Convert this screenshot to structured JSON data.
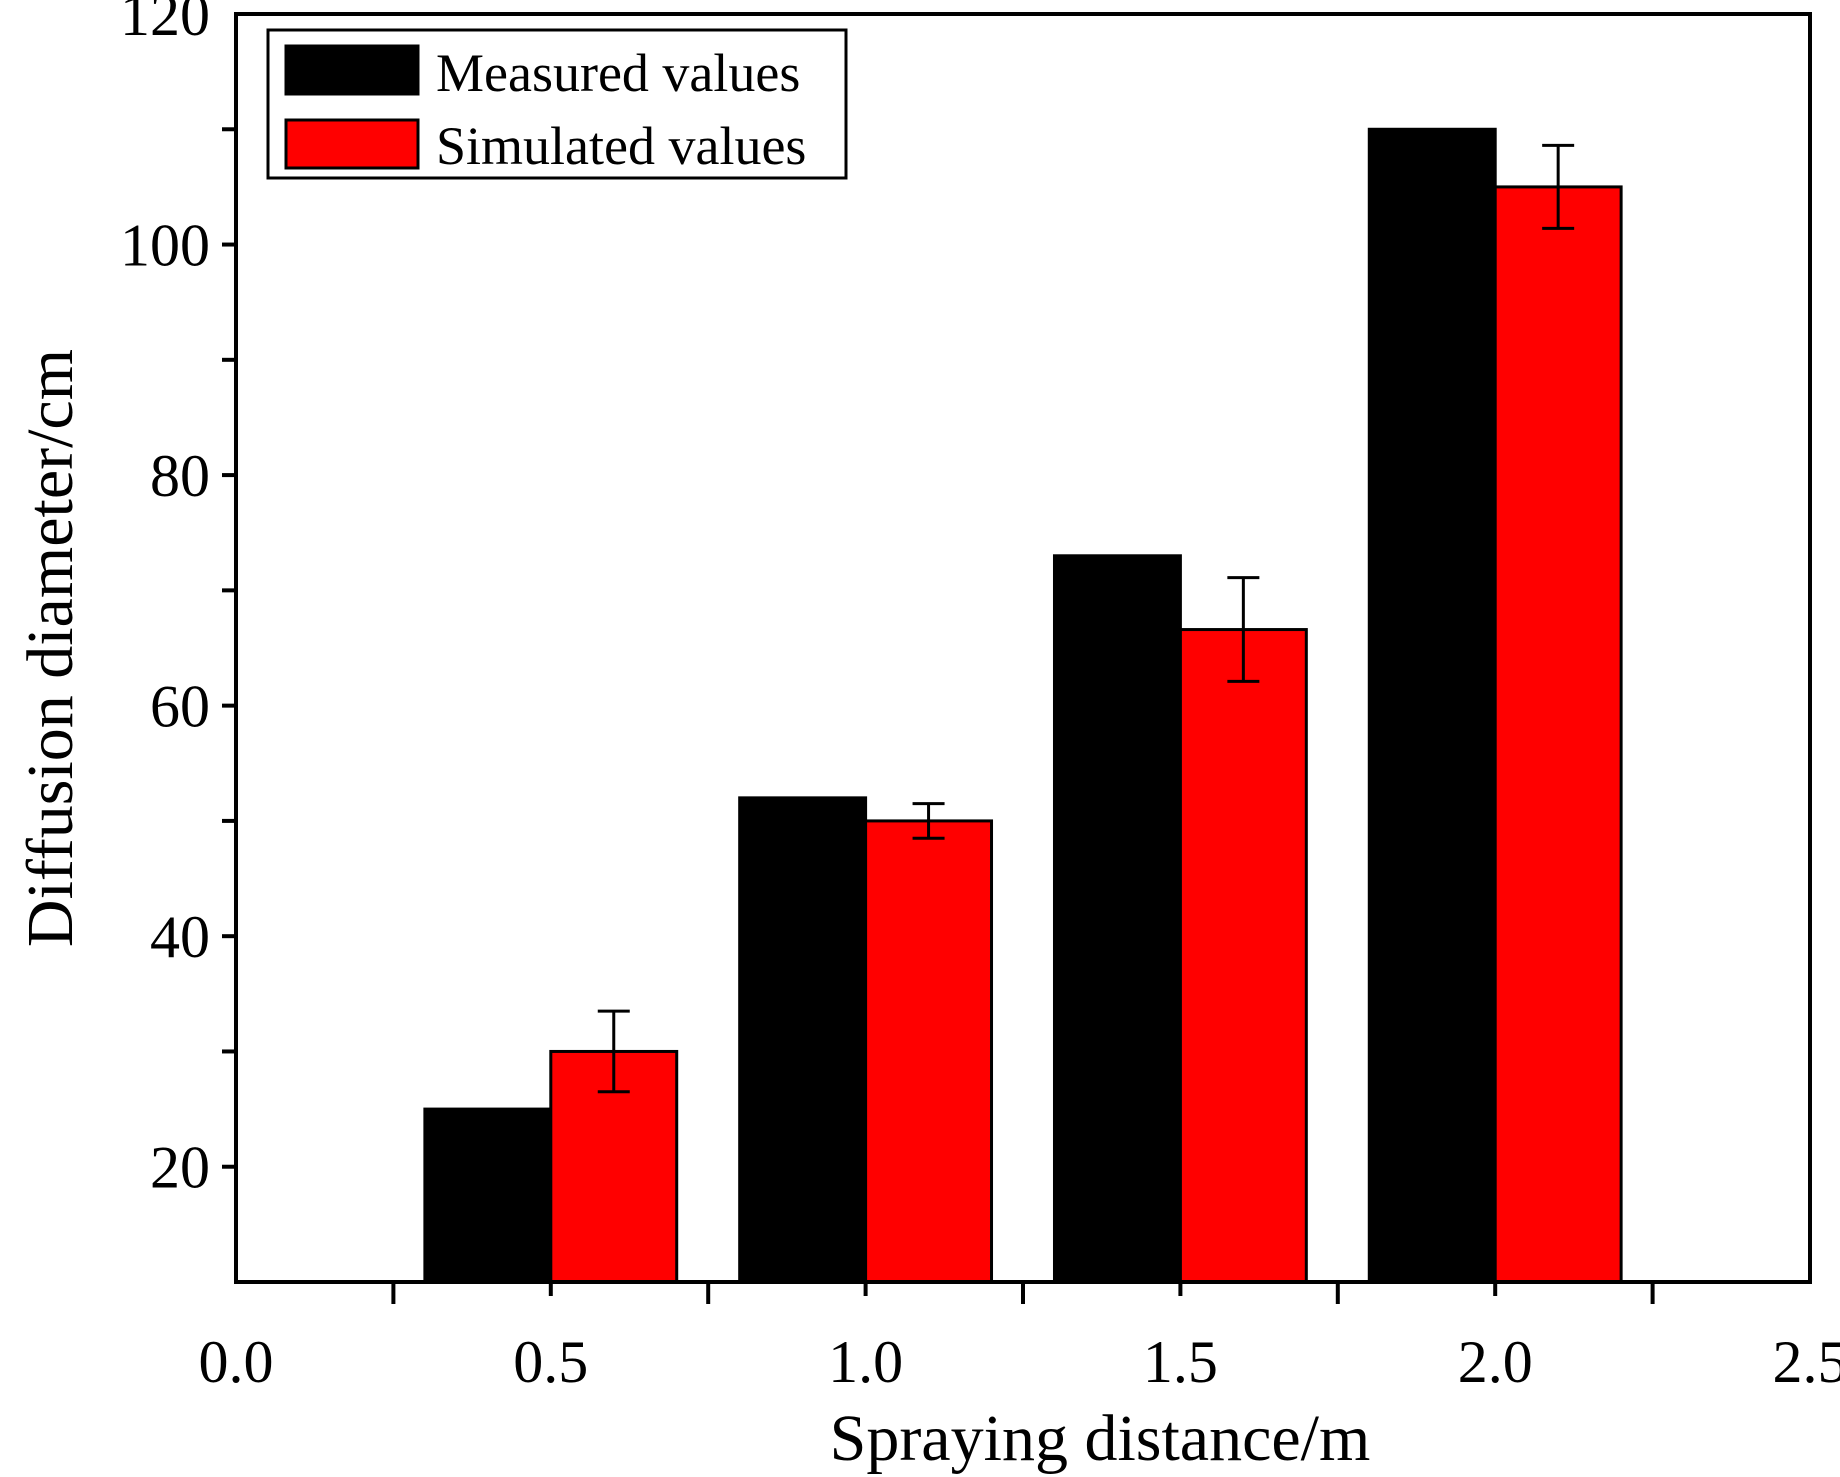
{
  "chart_data": {
    "type": "bar",
    "title": "",
    "xlabel": "Spraying distance/m",
    "ylabel": "Diffusion diameter/cm",
    "xlim": [
      0.0,
      2.5
    ],
    "ylim": [
      10,
      120
    ],
    "x_ticks": [
      "0.0",
      "0.5",
      "1.0",
      "1.5",
      "2.0",
      "2.5"
    ],
    "y_ticks": [
      "20",
      "40",
      "60",
      "80",
      "100",
      "120"
    ],
    "categories": [
      "0.5",
      "1.0",
      "1.5",
      "2.0"
    ],
    "x": [
      0.5,
      1.0,
      1.5,
      2.0
    ],
    "series": [
      {
        "name": "Measured values",
        "color": "#000000",
        "values": [
          25,
          52,
          73,
          110
        ]
      },
      {
        "name": "Simulated values",
        "color": "#ff0000",
        "values": [
          30,
          50,
          66.6,
          105
        ],
        "errors": [
          3.5,
          1.5,
          4.5,
          3.6
        ]
      }
    ],
    "legend_position": "top-left",
    "grid": false
  }
}
